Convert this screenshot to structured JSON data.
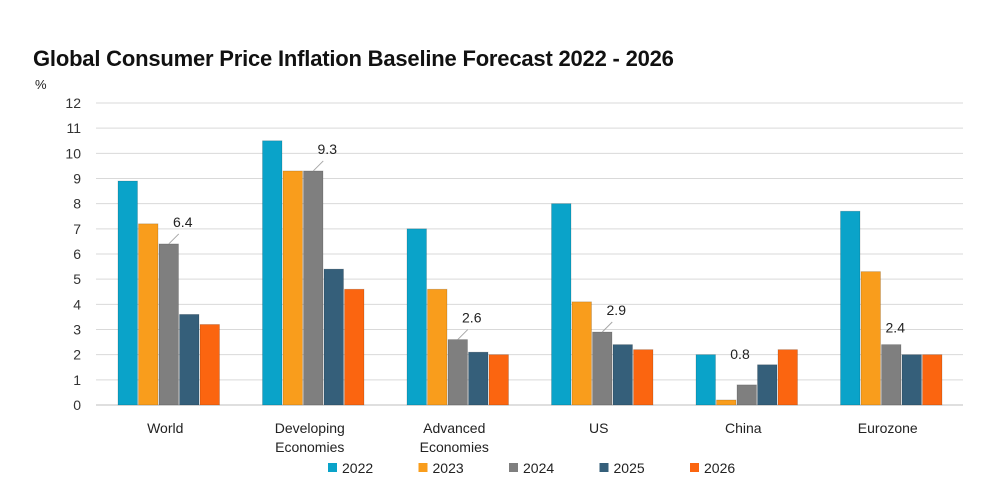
{
  "chart_data": {
    "type": "bar",
    "title": "Global Consumer Price Inflation Baseline Forecast 2022 - 2026",
    "ylabel": "%",
    "xlabel": "",
    "ylim": [
      0,
      12
    ],
    "yticks": [
      0,
      1,
      2,
      3,
      4,
      5,
      6,
      7,
      8,
      9,
      10,
      11,
      12
    ],
    "grid": true,
    "legend_position": "bottom",
    "categories": [
      [
        "World"
      ],
      [
        "Developing",
        "Economies"
      ],
      [
        "Advanced",
        "Economies"
      ],
      [
        "US"
      ],
      [
        "China"
      ],
      [
        "Eurozone"
      ]
    ],
    "series": [
      {
        "name": "2022",
        "color": "#0aa3c9",
        "values": [
          8.9,
          10.5,
          7.0,
          8.0,
          2.0,
          7.7
        ]
      },
      {
        "name": "2023",
        "color": "#f99d1c",
        "values": [
          7.2,
          9.3,
          4.6,
          4.1,
          0.2,
          5.3
        ]
      },
      {
        "name": "2024",
        "color": "#7f7f7f",
        "values": [
          6.4,
          9.3,
          2.6,
          2.9,
          0.8,
          2.4
        ]
      },
      {
        "name": "2025",
        "color": "#355f7a",
        "values": [
          3.6,
          5.4,
          2.1,
          2.4,
          1.6,
          2.0
        ]
      },
      {
        "name": "2026",
        "color": "#fb6510",
        "values": [
          3.2,
          4.6,
          2.0,
          2.2,
          2.2,
          2.0
        ]
      }
    ],
    "data_labels": [
      {
        "category_index": 0,
        "series_index": 2,
        "text": "6.4"
      },
      {
        "category_index": 1,
        "series_index": 2,
        "text": "9.3"
      },
      {
        "category_index": 2,
        "series_index": 2,
        "text": "2.6"
      },
      {
        "category_index": 3,
        "series_index": 2,
        "text": "2.9"
      },
      {
        "category_index": 4,
        "series_index": 2,
        "text": "0.8"
      },
      {
        "category_index": 5,
        "series_index": 2,
        "text": "2.4"
      }
    ]
  }
}
